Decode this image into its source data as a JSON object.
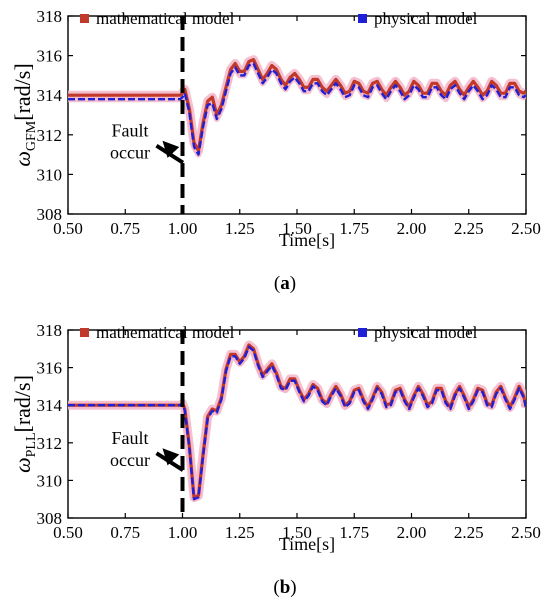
{
  "colors": {
    "mathematical": "#c0392b",
    "physical": "#1f1fd6",
    "halo": "#f3b6c8",
    "axis": "#000000"
  },
  "chart_data": [
    {
      "type": "line",
      "panel_label": "(a)",
      "label_open": "(",
      "label_letter": "a",
      "label_close": ")",
      "ylabel_symbol": "ω",
      "ylabel_sub": "GFM",
      "ylabel_unit": "[rad/s]",
      "xlabel": "Time[s]",
      "xlim": [
        0.5,
        2.5
      ],
      "ylim": [
        308,
        318
      ],
      "xticks": [
        "0.50",
        "0.75",
        "1.00",
        "1.25",
        "1.50",
        "1.75",
        "2.00",
        "2.25",
        "2.50"
      ],
      "yticks": [
        "308",
        "310",
        "312",
        "314",
        "316",
        "318"
      ],
      "legend": [
        "mathematical model",
        "physical  model"
      ],
      "annotation": [
        "Fault",
        "occur"
      ],
      "fault_time": 1.0,
      "series": [
        {
          "name": "mathematical model",
          "color": "#c0392b",
          "x": [
            0.5,
            0.99,
            1.0,
            1.01,
            1.03,
            1.05,
            1.07,
            1.09,
            1.11,
            1.13,
            1.15,
            1.17,
            1.19,
            1.21,
            1.23,
            1.25,
            1.27,
            1.29,
            1.31,
            1.33,
            1.35,
            1.37,
            1.39,
            1.41,
            1.43,
            1.45,
            1.47,
            1.49,
            1.51,
            1.53,
            1.55,
            1.57,
            1.59,
            1.61,
            1.63,
            1.65,
            1.67,
            1.69,
            1.71,
            1.73,
            1.75,
            1.77,
            1.79,
            1.81,
            1.83,
            1.85,
            1.87,
            1.89,
            1.91,
            1.93,
            1.95,
            1.97,
            1.99,
            2.01,
            2.03,
            2.05,
            2.07,
            2.09,
            2.11,
            2.13,
            2.15,
            2.17,
            2.19,
            2.21,
            2.23,
            2.25,
            2.27,
            2.29,
            2.31,
            2.33,
            2.35,
            2.37,
            2.39,
            2.41,
            2.43,
            2.45,
            2.47,
            2.49,
            2.5
          ],
          "values": [
            314.0,
            314.0,
            314.1,
            314.3,
            313.3,
            311.6,
            311.2,
            312.6,
            313.7,
            313.9,
            313.0,
            313.5,
            314.4,
            315.3,
            315.6,
            315.2,
            315.2,
            315.7,
            315.8,
            315.3,
            314.8,
            315.1,
            315.5,
            315.3,
            314.8,
            314.5,
            314.9,
            315.1,
            314.8,
            314.4,
            314.4,
            314.8,
            314.8,
            314.4,
            314.2,
            314.5,
            314.8,
            314.5,
            314.1,
            314.2,
            314.7,
            314.6,
            314.2,
            314.1,
            314.6,
            314.7,
            314.3,
            314.0,
            314.4,
            314.7,
            314.4,
            314.0,
            314.2,
            314.7,
            314.5,
            314.1,
            314.1,
            314.6,
            314.6,
            314.2,
            314.0,
            314.5,
            314.7,
            314.3,
            314.0,
            314.4,
            314.7,
            314.4,
            314.0,
            314.2,
            314.7,
            314.5,
            314.1,
            314.1,
            314.6,
            314.6,
            314.2,
            314.1,
            314.2
          ]
        },
        {
          "name": "physical  model",
          "color": "#1f1fd6",
          "x": [
            0.5,
            0.99,
            1.0,
            1.01,
            1.03,
            1.05,
            1.07,
            1.09,
            1.11,
            1.13,
            1.15,
            1.17,
            1.19,
            1.21,
            1.23,
            1.25,
            1.27,
            1.29,
            1.31,
            1.33,
            1.35,
            1.37,
            1.39,
            1.41,
            1.43,
            1.45,
            1.47,
            1.49,
            1.51,
            1.53,
            1.55,
            1.57,
            1.59,
            1.61,
            1.63,
            1.65,
            1.67,
            1.69,
            1.71,
            1.73,
            1.75,
            1.77,
            1.79,
            1.81,
            1.83,
            1.85,
            1.87,
            1.89,
            1.91,
            1.93,
            1.95,
            1.97,
            1.99,
            2.01,
            2.03,
            2.05,
            2.07,
            2.09,
            2.11,
            2.13,
            2.15,
            2.17,
            2.19,
            2.21,
            2.23,
            2.25,
            2.27,
            2.29,
            2.31,
            2.33,
            2.35,
            2.37,
            2.39,
            2.41,
            2.43,
            2.45,
            2.47,
            2.49,
            2.5
          ],
          "values": [
            313.8,
            313.8,
            313.9,
            314.1,
            313.1,
            311.4,
            311.0,
            312.4,
            313.5,
            313.6,
            312.8,
            313.3,
            314.2,
            315.1,
            315.4,
            315.0,
            315.0,
            315.5,
            315.6,
            315.1,
            314.6,
            314.9,
            315.3,
            315.1,
            314.6,
            314.3,
            314.7,
            314.9,
            314.6,
            314.2,
            314.2,
            314.6,
            314.6,
            314.2,
            314.0,
            314.3,
            314.6,
            314.3,
            313.9,
            314.0,
            314.5,
            314.4,
            314.0,
            313.9,
            314.4,
            314.5,
            314.1,
            313.8,
            314.2,
            314.5,
            314.2,
            313.8,
            314.0,
            314.5,
            314.3,
            313.9,
            313.9,
            314.4,
            314.4,
            314.0,
            313.8,
            314.3,
            314.5,
            314.1,
            313.8,
            314.2,
            314.5,
            314.2,
            313.8,
            314.0,
            314.5,
            314.3,
            313.9,
            313.9,
            314.4,
            314.4,
            314.0,
            313.9,
            314.0
          ]
        }
      ]
    },
    {
      "type": "line",
      "panel_label": "(b)",
      "label_open": "(",
      "label_letter": "b",
      "label_close": ")",
      "ylabel_symbol": "ω",
      "ylabel_sub": "PLL",
      "ylabel_unit": "[rad/s]",
      "xlabel": "Time[s]",
      "xlim": [
        0.5,
        2.5
      ],
      "ylim": [
        308,
        318
      ],
      "xticks": [
        "0.50",
        "0.75",
        "1.00",
        "1.25",
        "1.50",
        "1.75",
        "2.00",
        "2.25",
        "2.50"
      ],
      "yticks": [
        "308",
        "310",
        "312",
        "314",
        "316",
        "318"
      ],
      "legend": [
        "mathematical model",
        "physical  model"
      ],
      "annotation": [
        "Fault",
        "occur"
      ],
      "fault_time": 1.0,
      "series": [
        {
          "name": "mathematical model",
          "color": "#c0392b",
          "x": [
            0.5,
            0.99,
            1.0,
            1.01,
            1.03,
            1.05,
            1.07,
            1.09,
            1.11,
            1.13,
            1.15,
            1.17,
            1.19,
            1.21,
            1.23,
            1.25,
            1.27,
            1.29,
            1.31,
            1.33,
            1.35,
            1.37,
            1.39,
            1.41,
            1.43,
            1.45,
            1.47,
            1.49,
            1.51,
            1.53,
            1.55,
            1.57,
            1.59,
            1.61,
            1.63,
            1.65,
            1.67,
            1.69,
            1.71,
            1.73,
            1.75,
            1.77,
            1.79,
            1.81,
            1.83,
            1.85,
            1.87,
            1.89,
            1.91,
            1.93,
            1.95,
            1.97,
            1.99,
            2.01,
            2.03,
            2.05,
            2.07,
            2.09,
            2.11,
            2.13,
            2.15,
            2.17,
            2.19,
            2.21,
            2.23,
            2.25,
            2.27,
            2.29,
            2.31,
            2.33,
            2.35,
            2.37,
            2.39,
            2.41,
            2.43,
            2.45,
            2.47,
            2.49,
            2.5
          ],
          "values": [
            314.0,
            314.0,
            314.1,
            313.8,
            311.8,
            309.1,
            309.2,
            311.4,
            313.4,
            313.8,
            313.7,
            314.4,
            315.9,
            316.7,
            316.7,
            316.3,
            316.6,
            317.2,
            317.0,
            316.2,
            315.6,
            315.9,
            316.2,
            315.7,
            315.0,
            314.9,
            315.4,
            315.4,
            314.8,
            314.3,
            314.6,
            315.1,
            314.9,
            314.3,
            314.1,
            314.6,
            315.0,
            314.6,
            314.0,
            314.2,
            314.8,
            314.9,
            314.3,
            313.9,
            314.4,
            315.0,
            314.7,
            314.0,
            314.1,
            314.8,
            314.9,
            314.3,
            313.9,
            314.5,
            315.0,
            314.6,
            314.0,
            314.2,
            314.9,
            314.9,
            314.2,
            313.9,
            314.6,
            315.0,
            314.5,
            313.9,
            314.3,
            314.9,
            314.8,
            314.1,
            314.0,
            314.7,
            315.0,
            314.4,
            313.9,
            314.4,
            315.0,
            314.5,
            313.9
          ]
        },
        {
          "name": "physical  model",
          "color": "#1f1fd6",
          "x": [
            0.5,
            0.99,
            1.0,
            1.01,
            1.03,
            1.05,
            1.07,
            1.09,
            1.11,
            1.13,
            1.15,
            1.17,
            1.19,
            1.21,
            1.23,
            1.25,
            1.27,
            1.29,
            1.31,
            1.33,
            1.35,
            1.37,
            1.39,
            1.41,
            1.43,
            1.45,
            1.47,
            1.49,
            1.51,
            1.53,
            1.55,
            1.57,
            1.59,
            1.61,
            1.63,
            1.65,
            1.67,
            1.69,
            1.71,
            1.73,
            1.75,
            1.77,
            1.79,
            1.81,
            1.83,
            1.85,
            1.87,
            1.89,
            1.91,
            1.93,
            1.95,
            1.97,
            1.99,
            2.01,
            2.03,
            2.05,
            2.07,
            2.09,
            2.11,
            2.13,
            2.15,
            2.17,
            2.19,
            2.21,
            2.23,
            2.25,
            2.27,
            2.29,
            2.31,
            2.33,
            2.35,
            2.37,
            2.39,
            2.41,
            2.43,
            2.45,
            2.47,
            2.49,
            2.5
          ],
          "values": [
            314.0,
            314.0,
            314.1,
            313.7,
            311.7,
            309.0,
            309.1,
            311.3,
            313.3,
            313.7,
            313.6,
            314.3,
            315.8,
            316.6,
            316.6,
            316.2,
            316.5,
            317.1,
            316.9,
            316.1,
            315.5,
            315.8,
            316.1,
            315.6,
            314.9,
            314.8,
            315.3,
            315.3,
            314.7,
            314.2,
            314.5,
            315.0,
            314.8,
            314.2,
            314.0,
            314.5,
            314.9,
            314.5,
            313.9,
            314.1,
            314.7,
            314.8,
            314.2,
            313.8,
            314.3,
            314.9,
            314.6,
            313.9,
            314.0,
            314.7,
            314.8,
            314.2,
            313.8,
            314.4,
            314.9,
            314.5,
            313.9,
            314.1,
            314.8,
            314.8,
            314.1,
            313.8,
            314.5,
            314.9,
            314.4,
            313.8,
            314.2,
            314.8,
            314.7,
            314.0,
            313.9,
            314.6,
            314.9,
            314.3,
            313.8,
            314.3,
            314.9,
            314.4,
            313.9
          ]
        }
      ]
    }
  ]
}
